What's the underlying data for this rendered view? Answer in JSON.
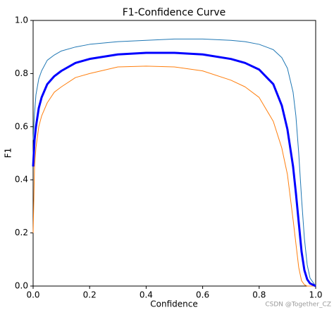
{
  "chart_data": {
    "type": "line",
    "title": "F1-Confidence Curve",
    "x_label": "Confidence",
    "y_label": "F1",
    "watermark": "CSDN @Together_CZ",
    "x": [
      0,
      0.005,
      0.01,
      0.02,
      0.03,
      0.05,
      0.075,
      0.1,
      0.15,
      0.2,
      0.3,
      0.4,
      0.5,
      0.6,
      0.7,
      0.75,
      0.8,
      0.85,
      0.88,
      0.9,
      0.92,
      0.93,
      0.94,
      0.95,
      0.96,
      0.97,
      0.98,
      1.0
    ],
    "series": [
      {
        "color": "#1f77b4",
        "width": 1,
        "values": [
          0.55,
          0.65,
          0.72,
          0.78,
          0.81,
          0.85,
          0.87,
          0.885,
          0.9,
          0.91,
          0.92,
          0.925,
          0.93,
          0.93,
          0.925,
          0.92,
          0.91,
          0.89,
          0.86,
          0.82,
          0.73,
          0.64,
          0.5,
          0.33,
          0.18,
          0.08,
          0.03,
          0
        ]
      },
      {
        "color": "#ff7f0e",
        "width": 1,
        "values": [
          0.2,
          0.45,
          0.52,
          0.6,
          0.64,
          0.69,
          0.73,
          0.75,
          0.785,
          0.8,
          0.825,
          0.828,
          0.825,
          0.81,
          0.775,
          0.75,
          0.71,
          0.62,
          0.52,
          0.42,
          0.25,
          0.16,
          0.07,
          0.02,
          0.005,
          0,
          0,
          0
        ]
      },
      {
        "color": "#0000ff",
        "width": 3,
        "values": [
          0.45,
          0.55,
          0.6,
          0.67,
          0.71,
          0.76,
          0.79,
          0.81,
          0.84,
          0.855,
          0.872,
          0.878,
          0.878,
          0.872,
          0.855,
          0.84,
          0.815,
          0.76,
          0.68,
          0.59,
          0.45,
          0.35,
          0.24,
          0.13,
          0.06,
          0.025,
          0.01,
          0
        ]
      }
    ],
    "xlim": [
      0,
      1
    ],
    "ylim": [
      0,
      1
    ],
    "xticks": [
      {
        "value": 0,
        "label": "0.0"
      },
      0.2,
      0.4,
      0.6,
      0.8,
      {
        "value": 1,
        "label": "1.0"
      }
    ],
    "yticks": [
      {
        "value": 0,
        "label": "0.0"
      },
      0.2,
      0.4,
      0.6,
      0.8,
      {
        "value": 1,
        "label": "1.0"
      }
    ],
    "grid": false
  }
}
